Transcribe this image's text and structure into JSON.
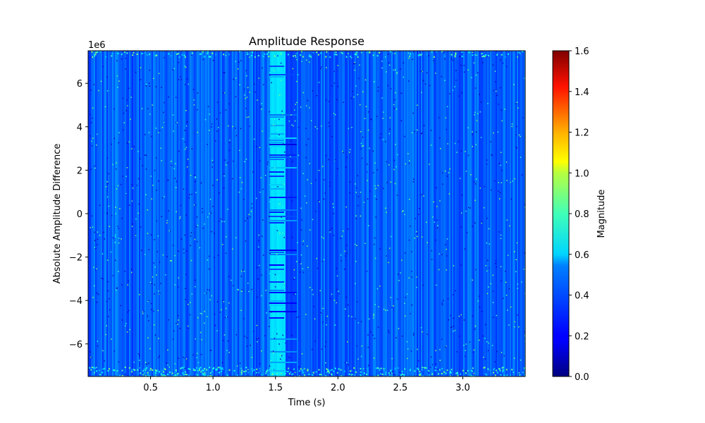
{
  "chart_data": {
    "type": "heatmap",
    "title": "Amplitude Response",
    "xlabel": "Time (s)",
    "ylabel": "Absolute Amplitude Difference",
    "y_offset_text": "1e6",
    "xlim": [
      0.0,
      3.5
    ],
    "ylim": [
      -7500000,
      7500000
    ],
    "x_ticks": [
      0.5,
      1.0,
      1.5,
      2.0,
      2.5,
      3.0
    ],
    "x_tick_labels": [
      "0.5",
      "1.0",
      "1.5",
      "2.0",
      "2.5",
      "3.0"
    ],
    "y_ticks": [
      -6,
      -4,
      -2,
      0,
      2,
      4,
      6
    ],
    "y_tick_labels": [
      "−6",
      "−4",
      "−2",
      "0",
      "2",
      "4",
      "6"
    ],
    "colormap": "jet",
    "colorbar": {
      "label": "Magnitude",
      "range": [
        0.0,
        1.6
      ],
      "ticks": [
        0.0,
        0.2,
        0.4,
        0.6,
        0.8,
        1.0,
        1.2,
        1.4,
        1.6
      ],
      "tick_labels": [
        "0.0",
        "0.2",
        "0.4",
        "0.6",
        "0.8",
        "1.0",
        "1.2",
        "1.4",
        "1.6"
      ]
    },
    "typical_magnitude": 0.35,
    "bright_band": {
      "x_range": [
        1.45,
        1.57
      ],
      "magnitude": 0.55
    },
    "dark_band": {
      "x_range": [
        1.57,
        1.67
      ],
      "magnitude": 0.3
    },
    "grid": false
  }
}
